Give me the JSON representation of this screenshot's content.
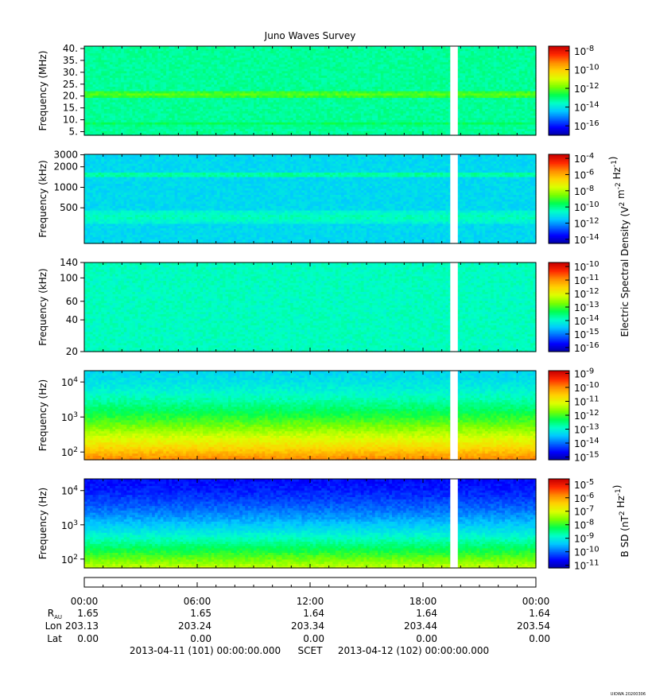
{
  "title": "Juno Waves Survey",
  "footer_mark": "UIOWA 20200306",
  "colors": {
    "scale": [
      "#0000a0",
      "#0000ff",
      "#0064ff",
      "#00c8ff",
      "#00ffc8",
      "#00ff50",
      "#78ff00",
      "#dcff00",
      "#ffd200",
      "#ff8c00",
      "#ff2800",
      "#c80000"
    ],
    "gap": "#ffffff",
    "frame": "#000000"
  },
  "chart_data": [
    {
      "type": "heatmap",
      "title": "",
      "ylabel": "Frequency (MHz)",
      "y_scale": "linear",
      "ylim": [
        3.5,
        41
      ],
      "yticks": [
        "40.",
        "35.",
        "30.",
        "25.",
        "20.",
        "15.",
        "10.",
        "5."
      ],
      "ytick_values": [
        40,
        35,
        30,
        25,
        20,
        15,
        10,
        5
      ],
      "colorbar": {
        "ticks": [
          "10-8",
          "10-10",
          "10-12",
          "10-14",
          "10-16"
        ],
        "exponents": [
          -8,
          -10,
          -12,
          -14,
          -16
        ],
        "range": [
          -17,
          -7.5
        ]
      },
      "base_level": 0.4,
      "bands": [
        {
          "y": 20.9,
          "level": 0.52,
          "width": 1.4
        },
        {
          "y": 8.6,
          "level": 0.45,
          "width": 0.9
        }
      ],
      "data_gap_hours": [
        19.45,
        19.85
      ]
    },
    {
      "type": "heatmap",
      "title": "",
      "ylabel": "Frequency (kHz)",
      "y_scale": "log",
      "ylim": [
        150,
        3050
      ],
      "yticks": [
        "3000",
        "2000",
        "1000",
        "500"
      ],
      "ytick_values": [
        3000,
        2000,
        1000,
        500
      ],
      "colorbar": {
        "ticks": [
          "10-4",
          "10-6",
          "10-8",
          "10-10",
          "10-12",
          "10-14"
        ],
        "exponents": [
          -4,
          -6,
          -8,
          -10,
          -12,
          -14
        ],
        "range": [
          -14.5,
          -3.5
        ]
      },
      "base_level": 0.3,
      "bands": [
        {
          "y": 1550,
          "level": 0.42,
          "width": 0.025
        },
        {
          "y": 370,
          "level": 0.38,
          "width": 0.09
        }
      ],
      "data_gap_hours": [
        19.45,
        19.85
      ]
    },
    {
      "type": "heatmap",
      "title": "",
      "ylabel": "Frequency (kHz)",
      "y_scale": "log",
      "ylim": [
        20,
        140
      ],
      "yticks": [
        "140",
        "100",
        "60",
        "40",
        "20"
      ],
      "ytick_values": [
        140,
        100,
        60,
        40,
        20
      ],
      "colorbar": {
        "ticks": [
          "10-10",
          "10-11",
          "10-12",
          "10-13",
          "10-14",
          "10-15",
          "10-16"
        ],
        "exponents": [
          -10,
          -11,
          -12,
          -13,
          -14,
          -15,
          -16
        ],
        "range": [
          -16.3,
          -9.7
        ]
      },
      "base_level": 0.37,
      "bands": [],
      "data_gap_hours": [
        19.45,
        19.85
      ]
    },
    {
      "type": "heatmap",
      "title": "",
      "ylabel": "Frequency (Hz)",
      "y_scale": "log",
      "ylim": [
        60,
        21000
      ],
      "yticks": [
        "10^4",
        "10^3",
        "10^2"
      ],
      "ytick_values": [
        10000,
        1000,
        100
      ],
      "colorbar": {
        "ticks": [
          "10-9",
          "10-10",
          "10-11",
          "10-12",
          "10-13",
          "10-14",
          "10-15"
        ],
        "exponents": [
          -9,
          -10,
          -11,
          -12,
          -13,
          -14,
          -15
        ],
        "range": [
          -15.2,
          -8.8
        ]
      },
      "low_level": 0.83,
      "high_level": 0.3,
      "bands": [],
      "data_gap_hours": [
        19.45,
        19.85
      ]
    },
    {
      "type": "heatmap",
      "title": "",
      "ylabel": "Frequency (Hz)",
      "y_scale": "log",
      "ylim": [
        55,
        22000
      ],
      "yticks": [
        "10^4",
        "10^3",
        "10^2"
      ],
      "ytick_values": [
        10000,
        1000,
        100
      ],
      "colorbar": {
        "ticks": [
          "10-5",
          "10-6",
          "10-7",
          "10-8",
          "10-9",
          "10-10",
          "10-11"
        ],
        "exponents": [
          -5,
          -6,
          -7,
          -8,
          -9,
          -10,
          -11
        ],
        "range": [
          -11.2,
          -4.6
        ]
      },
      "low_level": 0.62,
      "high_level": 0.1,
      "bands": [],
      "data_gap_hours": [
        19.45,
        19.85
      ]
    }
  ],
  "colorbar_titles": {
    "electric": {
      "prefix": "Electric Spectral Density (V",
      "units": [
        {
          "base": "",
          "sup": "2"
        },
        {
          "base": " m",
          "sup": "-2"
        },
        {
          "base": " Hz",
          "sup": "-1"
        }
      ],
      "suffix": ")"
    },
    "magnetic": {
      "prefix": "B SD (nT",
      "units": [
        {
          "base": "",
          "sup": "2"
        },
        {
          "base": " Hz",
          "sup": "-1"
        }
      ],
      "suffix": ")"
    }
  },
  "time_axis": {
    "range_hours": [
      0,
      24
    ],
    "tick_labels": [
      "00:00",
      "06:00",
      "12:00",
      "18:00",
      "00:00"
    ],
    "tick_hours": [
      0,
      6,
      12,
      18,
      24
    ]
  },
  "ephemeris": {
    "rows": [
      {
        "label": "R",
        "sub": "AU",
        "values": [
          "1.65",
          "1.65",
          "1.64",
          "1.64",
          "1.64"
        ]
      },
      {
        "label": "Lon",
        "sub": "",
        "values": [
          "203.13",
          "203.24",
          "203.34",
          "203.44",
          "203.54"
        ]
      },
      {
        "label": "Lat",
        "sub": "",
        "values": [
          "0.00",
          "0.00",
          "0.00",
          "0.00",
          "0.00"
        ]
      }
    ]
  },
  "time_range": {
    "start": "2013-04-11 (101) 00:00:00.000",
    "frame": "SCET",
    "end": "2013-04-12 (102) 00:00:00.000"
  }
}
